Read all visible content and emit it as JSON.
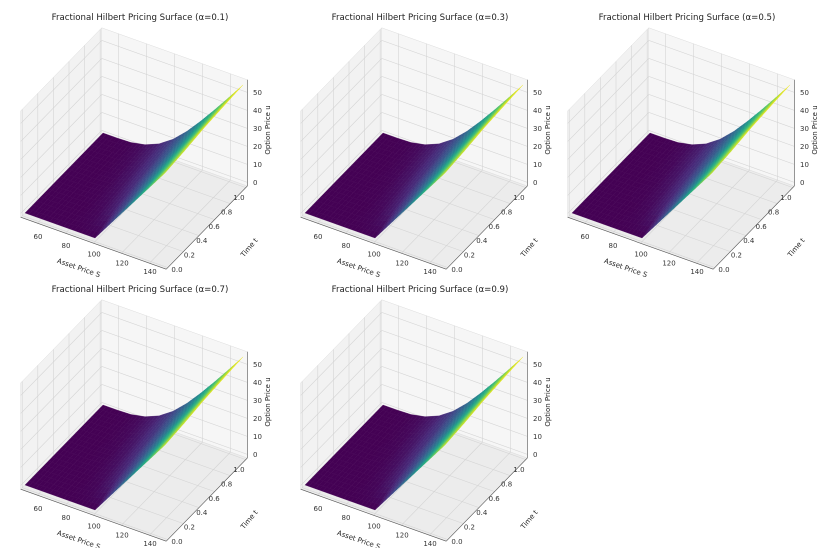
{
  "chart_data": [
    {
      "type": "surface",
      "title": "Fractional Hilbert Pricing Surface (α=0.1)",
      "xlabel": "Asset Price S",
      "ylabel": "Time t",
      "zlabel": "Option Price u",
      "colormap": "viridis",
      "xlim": [
        50,
        150
      ],
      "ylim": [
        0,
        1
      ],
      "zlim": [
        0,
        55
      ],
      "xticks": [
        "60",
        "80",
        "100",
        "120",
        "140"
      ],
      "yticks": [
        "0.0",
        "0.2",
        "0.4",
        "0.6",
        "0.8",
        "1.0"
      ],
      "zticks": [
        "0",
        "10",
        "20",
        "30",
        "40",
        "50"
      ],
      "S": [
        50,
        60,
        70,
        80,
        90,
        100,
        110,
        120,
        130,
        140,
        150
      ],
      "t": [
        0,
        0.25,
        0.5,
        0.75,
        1
      ],
      "u": [
        [
          0,
          0,
          0,
          0,
          0,
          0,
          10,
          20,
          30,
          40,
          50
        ],
        [
          0,
          0,
          0,
          0.06,
          1.0,
          4.6,
          12.0,
          21.4,
          31.3,
          41.2,
          51.2
        ],
        [
          0,
          0,
          0.02,
          0.4,
          2.4,
          6.9,
          14.2,
          23.2,
          32.9,
          42.8,
          52.8
        ],
        [
          0,
          0,
          0.1,
          1.0,
          3.9,
          8.6,
          15.9,
          24.6,
          34.0,
          43.7,
          53.7
        ],
        [
          0,
          0.02,
          0.3,
          1.86,
          5.1,
          10.45,
          17.66,
          26.17,
          35.3,
          44.8,
          54.5
        ]
      ]
    },
    {
      "type": "surface",
      "title": "Fractional Hilbert Pricing Surface (α=0.3)",
      "xlabel": "Asset Price S",
      "ylabel": "Time t",
      "zlabel": "Option Price u",
      "colormap": "viridis",
      "xlim": [
        50,
        150
      ],
      "ylim": [
        0,
        1
      ],
      "zlim": [
        0,
        55
      ],
      "xticks": [
        "60",
        "80",
        "100",
        "120",
        "140"
      ],
      "yticks": [
        "0.0",
        "0.2",
        "0.4",
        "0.6",
        "0.8",
        "1.0"
      ],
      "zticks": [
        "0",
        "10",
        "20",
        "30",
        "40",
        "50"
      ],
      "S": [
        50,
        60,
        70,
        80,
        90,
        100,
        110,
        120,
        130,
        140,
        150
      ],
      "t": [
        0,
        0.25,
        0.5,
        0.75,
        1
      ],
      "u": [
        [
          0,
          0,
          0,
          0,
          0,
          0,
          10,
          20,
          30,
          40,
          50
        ],
        [
          0,
          0,
          0,
          0.06,
          1.0,
          4.6,
          12.0,
          21.4,
          31.3,
          41.2,
          51.2
        ],
        [
          0,
          0,
          0.02,
          0.4,
          2.4,
          6.9,
          14.2,
          23.2,
          32.9,
          42.8,
          52.8
        ],
        [
          0,
          0,
          0.1,
          1.0,
          3.9,
          8.6,
          15.9,
          24.6,
          34.0,
          43.7,
          53.7
        ],
        [
          0,
          0.02,
          0.3,
          1.86,
          5.1,
          10.45,
          17.66,
          26.17,
          35.3,
          44.8,
          54.5
        ]
      ]
    },
    {
      "type": "surface",
      "title": "Fractional Hilbert Pricing Surface (α=0.5)",
      "xlabel": "Asset Price S",
      "ylabel": "Time t",
      "zlabel": "Option Price u",
      "colormap": "viridis",
      "xlim": [
        50,
        150
      ],
      "ylim": [
        0,
        1
      ],
      "zlim": [
        0,
        55
      ],
      "xticks": [
        "60",
        "80",
        "100",
        "120",
        "140"
      ],
      "yticks": [
        "0.0",
        "0.2",
        "0.4",
        "0.6",
        "0.8",
        "1.0"
      ],
      "zticks": [
        "0",
        "10",
        "20",
        "30",
        "40",
        "50"
      ],
      "S": [
        50,
        60,
        70,
        80,
        90,
        100,
        110,
        120,
        130,
        140,
        150
      ],
      "t": [
        0,
        0.25,
        0.5,
        0.75,
        1
      ],
      "u": [
        [
          0,
          0,
          0,
          0,
          0,
          0,
          10,
          20,
          30,
          40,
          50
        ],
        [
          0,
          0,
          0,
          0.06,
          1.0,
          4.6,
          12.0,
          21.4,
          31.3,
          41.2,
          51.2
        ],
        [
          0,
          0,
          0.02,
          0.4,
          2.4,
          6.9,
          14.2,
          23.2,
          32.9,
          42.8,
          52.8
        ],
        [
          0,
          0,
          0.1,
          1.0,
          3.9,
          8.6,
          15.9,
          24.6,
          34.0,
          43.7,
          53.7
        ],
        [
          0,
          0.02,
          0.3,
          1.86,
          5.1,
          10.45,
          17.66,
          26.17,
          35.3,
          44.8,
          54.5
        ]
      ]
    },
    {
      "type": "surface",
      "title": "Fractional Hilbert Pricing Surface (α=0.7)",
      "xlabel": "Asset Price S",
      "ylabel": "Time t",
      "zlabel": "Option Price u",
      "colormap": "viridis",
      "xlim": [
        50,
        150
      ],
      "ylim": [
        0,
        1
      ],
      "zlim": [
        0,
        55
      ],
      "xticks": [
        "60",
        "80",
        "100",
        "120",
        "140"
      ],
      "yticks": [
        "0.0",
        "0.2",
        "0.4",
        "0.6",
        "0.8",
        "1.0"
      ],
      "zticks": [
        "0",
        "10",
        "20",
        "30",
        "40",
        "50"
      ],
      "S": [
        50,
        60,
        70,
        80,
        90,
        100,
        110,
        120,
        130,
        140,
        150
      ],
      "t": [
        0,
        0.25,
        0.5,
        0.75,
        1
      ],
      "u": [
        [
          0,
          0,
          0,
          0,
          0,
          0,
          10,
          20,
          30,
          40,
          50
        ],
        [
          0,
          0,
          0,
          0.06,
          1.0,
          4.6,
          12.0,
          21.4,
          31.3,
          41.2,
          51.2
        ],
        [
          0,
          0,
          0.02,
          0.4,
          2.4,
          6.9,
          14.2,
          23.2,
          32.9,
          42.8,
          52.8
        ],
        [
          0,
          0,
          0.1,
          1.0,
          3.9,
          8.6,
          15.9,
          24.6,
          34.0,
          43.7,
          53.7
        ],
        [
          0,
          0.02,
          0.3,
          1.86,
          5.1,
          10.45,
          17.66,
          26.17,
          35.3,
          44.8,
          54.5
        ]
      ]
    },
    {
      "type": "surface",
      "title": "Fractional Hilbert Pricing Surface (α=0.9)",
      "xlabel": "Asset Price S",
      "ylabel": "Time t",
      "zlabel": "Option Price u",
      "colormap": "viridis",
      "xlim": [
        50,
        150
      ],
      "ylim": [
        0,
        1
      ],
      "zlim": [
        0,
        55
      ],
      "xticks": [
        "60",
        "80",
        "100",
        "120",
        "140"
      ],
      "yticks": [
        "0.0",
        "0.2",
        "0.4",
        "0.6",
        "0.8",
        "1.0"
      ],
      "zticks": [
        "0",
        "10",
        "20",
        "30",
        "40",
        "50"
      ],
      "S": [
        50,
        60,
        70,
        80,
        90,
        100,
        110,
        120,
        130,
        140,
        150
      ],
      "t": [
        0,
        0.25,
        0.5,
        0.75,
        1
      ],
      "u": [
        [
          0,
          0,
          0,
          0,
          0,
          0,
          10,
          20,
          30,
          40,
          50
        ],
        [
          0,
          0,
          0,
          0.06,
          1.0,
          4.6,
          12.0,
          21.4,
          31.3,
          41.2,
          51.2
        ],
        [
          0,
          0,
          0.02,
          0.4,
          2.4,
          6.9,
          14.2,
          23.2,
          32.9,
          42.8,
          52.8
        ],
        [
          0,
          0,
          0.1,
          1.0,
          3.9,
          8.6,
          15.9,
          24.6,
          34.0,
          43.7,
          53.7
        ],
        [
          0,
          0.02,
          0.3,
          1.86,
          5.1,
          10.45,
          17.66,
          26.17,
          35.3,
          44.8,
          54.5
        ]
      ]
    }
  ]
}
